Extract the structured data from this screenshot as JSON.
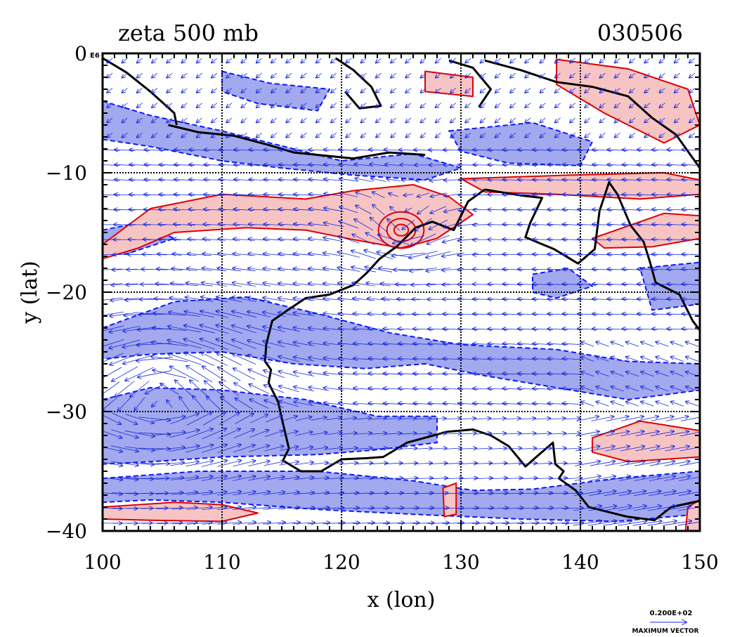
{
  "title_left": "zeta 500 mb",
  "title_right": "030506",
  "xlabel": "x (lon)",
  "ylabel": "y (lat)",
  "corner_tag": "E6",
  "x_ticks": [
    {
      "value": 100,
      "label": "100"
    },
    {
      "value": 110,
      "label": "110"
    },
    {
      "value": 120,
      "label": "120"
    },
    {
      "value": 130,
      "label": "130"
    },
    {
      "value": 140,
      "label": "140"
    },
    {
      "value": 150,
      "label": "150"
    }
  ],
  "y_ticks": [
    {
      "value": 0,
      "label": "0"
    },
    {
      "value": -10,
      "label": "−10"
    },
    {
      "value": -20,
      "label": "−20"
    },
    {
      "value": -30,
      "label": "−30"
    },
    {
      "value": -40,
      "label": "−40"
    }
  ],
  "legend": {
    "magnitude": "0.200E+02",
    "caption": "MAXIMUM VECTOR"
  },
  "colors": {
    "positive_fill": "#f7c4c4",
    "positive_line": "#e00000",
    "negative_fill": "#a3a9ee",
    "negative_line": "#0a18ff",
    "vector": "#1a2bdc",
    "coast": "#000000",
    "grid": "#000000"
  },
  "chart_data": {
    "type": "vector-contour-map",
    "variable": "zeta 500 mb",
    "date": "030506",
    "xlim": [
      100,
      150
    ],
    "ylim": [
      -40,
      0
    ],
    "grid_lines": {
      "lon": [
        110,
        120,
        130,
        140
      ],
      "lat": [
        -10,
        -20,
        -30
      ]
    },
    "positive_regions": [
      [
        [
          100,
          -16
        ],
        [
          104,
          -13
        ],
        [
          110,
          -11.8
        ],
        [
          117,
          -12.2
        ],
        [
          121,
          -11.5
        ],
        [
          126,
          -11
        ],
        [
          129,
          -12
        ],
        [
          131,
          -13.5
        ],
        [
          128,
          -15.5
        ],
        [
          125,
          -16.3
        ],
        [
          121,
          -15.6
        ],
        [
          117,
          -14.8
        ],
        [
          112,
          -14.6
        ],
        [
          106,
          -15
        ],
        [
          103,
          -16.3
        ],
        [
          100,
          -17.2
        ]
      ],
      [
        [
          130,
          -10.5
        ],
        [
          139,
          -10.2
        ],
        [
          147,
          -10
        ],
        [
          150,
          -10.6
        ],
        [
          150,
          -11.8
        ],
        [
          145,
          -12.2
        ],
        [
          138,
          -11.8
        ],
        [
          132,
          -11.6
        ]
      ],
      [
        [
          141,
          -15.5
        ],
        [
          147,
          -13.4
        ],
        [
          150,
          -13.6
        ],
        [
          150,
          -15.5
        ],
        [
          146,
          -16.2
        ],
        [
          142,
          -16.3
        ]
      ],
      [
        [
          138,
          -0.5
        ],
        [
          144,
          -1.3
        ],
        [
          149,
          -3
        ],
        [
          150,
          -6
        ],
        [
          147,
          -7.5
        ],
        [
          142,
          -5
        ],
        [
          138,
          -2.6
        ]
      ],
      [
        [
          127,
          -1.5
        ],
        [
          131,
          -2
        ],
        [
          131,
          -3.6
        ],
        [
          127,
          -3.2
        ]
      ],
      [
        [
          141,
          -32.2
        ],
        [
          145,
          -30.8
        ],
        [
          150,
          -31.6
        ],
        [
          150,
          -33.8
        ],
        [
          144,
          -34.2
        ],
        [
          141,
          -33.4
        ]
      ],
      [
        [
          100,
          -38
        ],
        [
          106,
          -37.6
        ],
        [
          110,
          -37.8
        ],
        [
          113,
          -38.5
        ],
        [
          110,
          -39.2
        ],
        [
          104,
          -39.1
        ],
        [
          100,
          -39
        ]
      ],
      [
        [
          128.5,
          -36.4
        ],
        [
          129.6,
          -36
        ],
        [
          129.6,
          -38.6
        ],
        [
          128.6,
          -38.8
        ]
      ],
      [
        [
          149,
          -38
        ],
        [
          150,
          -37.4
        ],
        [
          150,
          -40
        ],
        [
          148.8,
          -40
        ]
      ]
    ],
    "negative_regions": [
      [
        [
          100,
          -4
        ],
        [
          104,
          -5.2
        ],
        [
          110,
          -6.5
        ],
        [
          116,
          -8
        ],
        [
          120,
          -9
        ],
        [
          126,
          -8.4
        ],
        [
          130,
          -9.6
        ],
        [
          127,
          -10.6
        ],
        [
          121,
          -10.2
        ],
        [
          115,
          -9.6
        ],
        [
          110,
          -9
        ],
        [
          104,
          -7.8
        ],
        [
          100,
          -7.2
        ]
      ],
      [
        [
          110,
          -1.5
        ],
        [
          114,
          -2.5
        ],
        [
          119,
          -3
        ],
        [
          118,
          -4.8
        ],
        [
          113,
          -4.2
        ],
        [
          110,
          -3.2
        ]
      ],
      [
        [
          129,
          -6.5
        ],
        [
          136,
          -5.8
        ],
        [
          141,
          -7.4
        ],
        [
          140,
          -9.4
        ],
        [
          134,
          -9.2
        ],
        [
          130,
          -8.2
        ]
      ],
      [
        [
          100,
          -23
        ],
        [
          106,
          -20.8
        ],
        [
          112,
          -20.4
        ],
        [
          118,
          -21.8
        ],
        [
          124,
          -23.4
        ],
        [
          130,
          -24.4
        ],
        [
          138,
          -24.8
        ],
        [
          144,
          -25.8
        ],
        [
          150,
          -26
        ],
        [
          150,
          -28.2
        ],
        [
          144,
          -29
        ],
        [
          138,
          -28
        ],
        [
          132,
          -27
        ],
        [
          127,
          -26
        ],
        [
          122,
          -26.4
        ],
        [
          116,
          -26
        ],
        [
          110,
          -25
        ],
        [
          104,
          -25.2
        ],
        [
          100,
          -25.6
        ]
      ],
      [
        [
          100,
          -29
        ],
        [
          104,
          -28
        ],
        [
          110,
          -28.2
        ],
        [
          117,
          -29
        ],
        [
          123,
          -30.4
        ],
        [
          128,
          -30.4
        ],
        [
          128,
          -32.6
        ],
        [
          123,
          -33.2
        ],
        [
          118,
          -33.6
        ],
        [
          110,
          -33.8
        ],
        [
          104,
          -34.2
        ],
        [
          100,
          -34.4
        ]
      ],
      [
        [
          100,
          -35.6
        ],
        [
          108,
          -35
        ],
        [
          118,
          -35
        ],
        [
          126,
          -35.8
        ],
        [
          131,
          -36.6
        ],
        [
          136,
          -36.5
        ],
        [
          143,
          -35.6
        ],
        [
          150,
          -35
        ],
        [
          150,
          -38.6
        ],
        [
          143,
          -39.2
        ],
        [
          135,
          -39
        ],
        [
          126,
          -38.6
        ],
        [
          118,
          -38.2
        ],
        [
          110,
          -37.6
        ],
        [
          104,
          -37.4
        ],
        [
          100,
          -37.6
        ]
      ],
      [
        [
          100,
          -14.8
        ],
        [
          103,
          -14.2
        ],
        [
          106,
          -15.5
        ],
        [
          102,
          -16.8
        ],
        [
          100,
          -16.8
        ]
      ],
      [
        [
          136,
          -18.5
        ],
        [
          139,
          -18
        ],
        [
          141,
          -19.5
        ],
        [
          138,
          -20.5
        ],
        [
          136,
          -20
        ]
      ],
      [
        [
          145,
          -18
        ],
        [
          150,
          -17.5
        ],
        [
          150,
          -21
        ],
        [
          146,
          -21.5
        ]
      ]
    ],
    "vortex_center": [
      125,
      -14.8
    ],
    "vector_max": "0.200E+02"
  }
}
